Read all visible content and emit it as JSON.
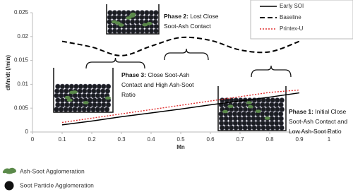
{
  "chart_data": {
    "type": "line",
    "x_label": "Mn",
    "y_label": "dMn/dt (/min)",
    "x": [
      0.1,
      0.2,
      0.3,
      0.4,
      0.5,
      0.6,
      0.7,
      0.8,
      0.9
    ],
    "series": [
      {
        "name": "Early SOI",
        "color": "#000000",
        "style": "solid",
        "values": [
          0.0015,
          0.0023,
          0.0032,
          0.004,
          0.0048,
          0.0057,
          0.0065,
          0.0073,
          0.0082
        ]
      },
      {
        "name": "Baseline",
        "color": "#000000",
        "style": "dashed",
        "values": [
          0.019,
          0.0178,
          0.016,
          0.018,
          0.0198,
          0.0192,
          0.0172,
          0.0168,
          0.019
        ]
      },
      {
        "name": "Printex-U",
        "color": "#e03030",
        "style": "dotted",
        "values": [
          0.002,
          0.0029,
          0.0038,
          0.0047,
          0.0056,
          0.0065,
          0.0074,
          0.0083,
          0.0088
        ]
      }
    ],
    "xlim": [
      0,
      1
    ],
    "xticks": [
      0,
      0.1,
      0.2,
      0.3,
      0.4,
      0.5,
      0.6,
      0.7,
      0.8,
      0.9,
      1
    ],
    "ylim": [
      0,
      0.025
    ],
    "yticks": [
      0,
      0.005,
      0.01,
      0.015,
      0.02,
      0.025
    ],
    "legend": "top-right",
    "annotations": [
      {
        "label": "Phase 2:",
        "lines": [
          "Lost Close",
          "Soot-Ash Contact"
        ]
      },
      {
        "label": "Phase 3:",
        "lines": [
          "Close Soot-Ash",
          "Contact and High Ash-Soot",
          "Ratio"
        ]
      },
      {
        "label": "Phase 1:",
        "lines": [
          "Initial Close",
          "Soot-Ash Contact and",
          "Low Ash-Soot Ratio"
        ]
      }
    ],
    "key": [
      "Ash-Soot Agglomeration",
      "Soot Particle Agglomeration"
    ]
  }
}
